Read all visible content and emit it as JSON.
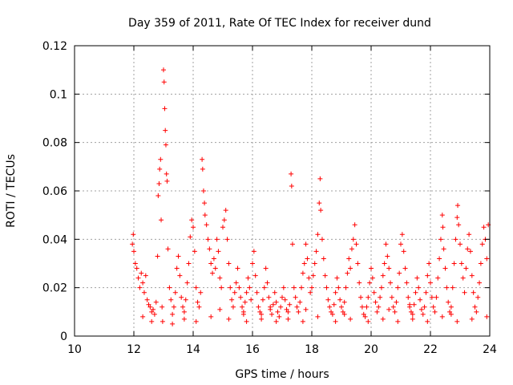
{
  "chart_data": {
    "type": "scatter",
    "title": "Day 359 of 2011, Rate Of TEC Index for receiver dund",
    "xlabel": "GPS time / hours",
    "ylabel": "ROTI / TECUs",
    "xlim": [
      10,
      24
    ],
    "ylim": [
      0,
      0.12
    ],
    "xticks": [
      10,
      12,
      14,
      16,
      18,
      20,
      22,
      24
    ],
    "yticks": [
      0,
      0.02,
      0.04,
      0.06,
      0.08,
      0.1,
      0.12
    ],
    "ytick_labels": [
      "0",
      "0.02",
      "0.04",
      "0.06",
      "0.08",
      "0.1",
      "0.12"
    ],
    "xtick_labels": [
      "10",
      "12",
      "14",
      "16",
      "18",
      "20",
      "22",
      "24"
    ],
    "grid": true,
    "legend": "none",
    "marker": "plus",
    "color": "#ff0000",
    "points": [
      [
        11.95,
        0.038
      ],
      [
        11.98,
        0.042
      ],
      [
        12.0,
        0.035
      ],
      [
        12.05,
        0.03
      ],
      [
        12.1,
        0.028
      ],
      [
        12.15,
        0.024
      ],
      [
        12.2,
        0.02
      ],
      [
        12.25,
        0.026
      ],
      [
        12.3,
        0.022
      ],
      [
        12.35,
        0.018
      ],
      [
        12.4,
        0.025
      ],
      [
        12.45,
        0.015
      ],
      [
        12.5,
        0.013
      ],
      [
        12.55,
        0.012
      ],
      [
        12.6,
        0.01
      ],
      [
        12.65,
        0.011
      ],
      [
        12.7,
        0.009
      ],
      [
        12.75,
        0.014
      ],
      [
        12.8,
        0.033
      ],
      [
        12.82,
        0.058
      ],
      [
        12.85,
        0.063
      ],
      [
        12.87,
        0.069
      ],
      [
        12.9,
        0.073
      ],
      [
        12.92,
        0.048
      ],
      [
        12.95,
        0.012
      ],
      [
        12.97,
        0.006
      ],
      [
        13.0,
        0.11
      ],
      [
        13.02,
        0.105
      ],
      [
        13.04,
        0.094
      ],
      [
        13.06,
        0.085
      ],
      [
        13.08,
        0.079
      ],
      [
        13.1,
        0.067
      ],
      [
        13.12,
        0.064
      ],
      [
        13.15,
        0.036
      ],
      [
        13.2,
        0.02
      ],
      [
        13.25,
        0.015
      ],
      [
        13.3,
        0.009
      ],
      [
        13.35,
        0.012
      ],
      [
        13.4,
        0.018
      ],
      [
        13.45,
        0.028
      ],
      [
        13.5,
        0.033
      ],
      [
        13.55,
        0.025
      ],
      [
        13.6,
        0.016
      ],
      [
        13.65,
        0.012
      ],
      [
        13.7,
        0.01
      ],
      [
        13.75,
        0.015
      ],
      [
        13.8,
        0.022
      ],
      [
        13.85,
        0.03
      ],
      [
        13.9,
        0.041
      ],
      [
        13.95,
        0.048
      ],
      [
        14.0,
        0.045
      ],
      [
        14.05,
        0.035
      ],
      [
        14.1,
        0.02
      ],
      [
        14.15,
        0.014
      ],
      [
        14.2,
        0.012
      ],
      [
        14.25,
        0.018
      ],
      [
        14.3,
        0.073
      ],
      [
        14.32,
        0.069
      ],
      [
        14.35,
        0.06
      ],
      [
        14.38,
        0.055
      ],
      [
        14.4,
        0.05
      ],
      [
        14.45,
        0.046
      ],
      [
        14.5,
        0.04
      ],
      [
        14.55,
        0.036
      ],
      [
        14.6,
        0.03
      ],
      [
        14.65,
        0.026
      ],
      [
        14.7,
        0.032
      ],
      [
        14.75,
        0.028
      ],
      [
        14.8,
        0.04
      ],
      [
        14.85,
        0.035
      ],
      [
        14.9,
        0.024
      ],
      [
        14.95,
        0.02
      ],
      [
        15.0,
        0.045
      ],
      [
        15.05,
        0.048
      ],
      [
        15.1,
        0.052
      ],
      [
        15.15,
        0.04
      ],
      [
        15.2,
        0.03
      ],
      [
        15.25,
        0.02
      ],
      [
        15.3,
        0.015
      ],
      [
        15.35,
        0.012
      ],
      [
        15.4,
        0.018
      ],
      [
        15.45,
        0.022
      ],
      [
        15.5,
        0.028
      ],
      [
        15.55,
        0.02
      ],
      [
        15.6,
        0.016
      ],
      [
        15.65,
        0.012
      ],
      [
        15.7,
        0.01
      ],
      [
        15.75,
        0.014
      ],
      [
        15.8,
        0.018
      ],
      [
        15.85,
        0.024
      ],
      [
        15.9,
        0.02
      ],
      [
        15.95,
        0.015
      ],
      [
        16.0,
        0.03
      ],
      [
        16.05,
        0.035
      ],
      [
        16.1,
        0.025
      ],
      [
        16.15,
        0.018
      ],
      [
        16.2,
        0.012
      ],
      [
        16.25,
        0.01
      ],
      [
        16.3,
        0.009
      ],
      [
        16.35,
        0.015
      ],
      [
        16.4,
        0.02
      ],
      [
        16.45,
        0.028
      ],
      [
        16.5,
        0.022
      ],
      [
        16.55,
        0.016
      ],
      [
        16.6,
        0.011
      ],
      [
        16.65,
        0.009
      ],
      [
        16.7,
        0.013
      ],
      [
        16.75,
        0.018
      ],
      [
        16.8,
        0.014
      ],
      [
        16.85,
        0.01
      ],
      [
        16.9,
        0.008
      ],
      [
        16.95,
        0.012
      ],
      [
        17.0,
        0.016
      ],
      [
        17.05,
        0.02
      ],
      [
        17.1,
        0.015
      ],
      [
        17.15,
        0.011
      ],
      [
        17.2,
        0.01
      ],
      [
        17.25,
        0.013
      ],
      [
        17.3,
        0.067
      ],
      [
        17.32,
        0.062
      ],
      [
        17.35,
        0.038
      ],
      [
        17.4,
        0.02
      ],
      [
        17.45,
        0.016
      ],
      [
        17.5,
        0.012
      ],
      [
        17.55,
        0.01
      ],
      [
        17.6,
        0.014
      ],
      [
        17.65,
        0.02
      ],
      [
        17.7,
        0.026
      ],
      [
        17.75,
        0.03
      ],
      [
        17.8,
        0.038
      ],
      [
        17.85,
        0.032
      ],
      [
        17.9,
        0.024
      ],
      [
        17.95,
        0.018
      ],
      [
        18.0,
        0.02
      ],
      [
        18.05,
        0.025
      ],
      [
        18.1,
        0.03
      ],
      [
        18.15,
        0.035
      ],
      [
        18.2,
        0.042
      ],
      [
        18.25,
        0.055
      ],
      [
        18.28,
        0.065
      ],
      [
        18.3,
        0.052
      ],
      [
        18.35,
        0.04
      ],
      [
        18.4,
        0.032
      ],
      [
        18.45,
        0.025
      ],
      [
        18.5,
        0.02
      ],
      [
        18.55,
        0.015
      ],
      [
        18.6,
        0.012
      ],
      [
        18.65,
        0.01
      ],
      [
        18.7,
        0.009
      ],
      [
        18.75,
        0.013
      ],
      [
        18.8,
        0.018
      ],
      [
        18.85,
        0.024
      ],
      [
        18.9,
        0.02
      ],
      [
        18.95,
        0.015
      ],
      [
        19.0,
        0.012
      ],
      [
        19.05,
        0.01
      ],
      [
        19.1,
        0.014
      ],
      [
        19.15,
        0.02
      ],
      [
        19.2,
        0.026
      ],
      [
        19.25,
        0.032
      ],
      [
        19.3,
        0.028
      ],
      [
        19.35,
        0.036
      ],
      [
        19.4,
        0.04
      ],
      [
        19.45,
        0.046
      ],
      [
        19.5,
        0.038
      ],
      [
        19.55,
        0.03
      ],
      [
        19.6,
        0.022
      ],
      [
        19.65,
        0.016
      ],
      [
        19.7,
        0.012
      ],
      [
        19.75,
        0.009
      ],
      [
        19.8,
        0.008
      ],
      [
        19.85,
        0.012
      ],
      [
        19.9,
        0.016
      ],
      [
        19.95,
        0.022
      ],
      [
        20.0,
        0.028
      ],
      [
        20.05,
        0.024
      ],
      [
        20.1,
        0.018
      ],
      [
        20.15,
        0.014
      ],
      [
        20.2,
        0.01
      ],
      [
        20.25,
        0.012
      ],
      [
        20.3,
        0.016
      ],
      [
        20.35,
        0.02
      ],
      [
        20.4,
        0.025
      ],
      [
        20.45,
        0.03
      ],
      [
        20.5,
        0.038
      ],
      [
        20.55,
        0.033
      ],
      [
        20.6,
        0.028
      ],
      [
        20.65,
        0.022
      ],
      [
        20.7,
        0.016
      ],
      [
        20.75,
        0.012
      ],
      [
        20.8,
        0.01
      ],
      [
        20.85,
        0.014
      ],
      [
        20.9,
        0.02
      ],
      [
        20.95,
        0.026
      ],
      [
        21.0,
        0.038
      ],
      [
        21.05,
        0.042
      ],
      [
        21.1,
        0.035
      ],
      [
        21.15,
        0.028
      ],
      [
        21.2,
        0.022
      ],
      [
        21.25,
        0.016
      ],
      [
        21.3,
        0.012
      ],
      [
        21.35,
        0.01
      ],
      [
        21.4,
        0.009
      ],
      [
        21.45,
        0.013
      ],
      [
        21.5,
        0.018
      ],
      [
        21.55,
        0.024
      ],
      [
        21.6,
        0.02
      ],
      [
        21.65,
        0.015
      ],
      [
        21.7,
        0.011
      ],
      [
        21.75,
        0.009
      ],
      [
        21.8,
        0.012
      ],
      [
        21.85,
        0.018
      ],
      [
        21.9,
        0.025
      ],
      [
        21.95,
        0.03
      ],
      [
        22.0,
        0.022
      ],
      [
        22.05,
        0.016
      ],
      [
        22.1,
        0.012
      ],
      [
        22.15,
        0.01
      ],
      [
        22.2,
        0.016
      ],
      [
        22.25,
        0.024
      ],
      [
        22.3,
        0.032
      ],
      [
        22.35,
        0.04
      ],
      [
        22.4,
        0.05
      ],
      [
        22.42,
        0.045
      ],
      [
        22.45,
        0.036
      ],
      [
        22.5,
        0.028
      ],
      [
        22.55,
        0.02
      ],
      [
        22.6,
        0.014
      ],
      [
        22.65,
        0.01
      ],
      [
        22.7,
        0.012
      ],
      [
        22.75,
        0.02
      ],
      [
        22.8,
        0.03
      ],
      [
        22.85,
        0.04
      ],
      [
        22.9,
        0.049
      ],
      [
        22.92,
        0.054
      ],
      [
        22.95,
        0.046
      ],
      [
        23.0,
        0.038
      ],
      [
        23.05,
        0.03
      ],
      [
        23.1,
        0.024
      ],
      [
        23.15,
        0.018
      ],
      [
        23.2,
        0.028
      ],
      [
        23.25,
        0.036
      ],
      [
        23.3,
        0.042
      ],
      [
        23.35,
        0.035
      ],
      [
        23.4,
        0.025
      ],
      [
        23.45,
        0.018
      ],
      [
        23.5,
        0.012
      ],
      [
        23.55,
        0.01
      ],
      [
        23.6,
        0.016
      ],
      [
        23.65,
        0.022
      ],
      [
        23.7,
        0.03
      ],
      [
        23.75,
        0.038
      ],
      [
        23.8,
        0.045
      ],
      [
        23.85,
        0.04
      ],
      [
        23.9,
        0.032
      ],
      [
        23.95,
        0.046
      ],
      [
        12.3,
        0.008
      ],
      [
        12.6,
        0.006
      ],
      [
        13.3,
        0.005
      ],
      [
        13.7,
        0.007
      ],
      [
        14.1,
        0.006
      ],
      [
        14.6,
        0.008
      ],
      [
        15.2,
        0.007
      ],
      [
        15.8,
        0.006
      ],
      [
        16.3,
        0.007
      ],
      [
        16.8,
        0.006
      ],
      [
        17.2,
        0.007
      ],
      [
        17.7,
        0.006
      ],
      [
        18.2,
        0.008
      ],
      [
        18.8,
        0.006
      ],
      [
        19.3,
        0.007
      ],
      [
        19.9,
        0.006
      ],
      [
        20.4,
        0.007
      ],
      [
        20.9,
        0.006
      ],
      [
        21.4,
        0.007
      ],
      [
        21.9,
        0.006
      ],
      [
        22.4,
        0.008
      ],
      [
        22.9,
        0.006
      ],
      [
        23.4,
        0.007
      ],
      [
        23.9,
        0.008
      ],
      [
        14.9,
        0.011
      ],
      [
        15.7,
        0.009
      ],
      [
        16.6,
        0.012
      ],
      [
        17.8,
        0.011
      ],
      [
        19.1,
        0.009
      ],
      [
        20.6,
        0.011
      ],
      [
        21.3,
        0.013
      ],
      [
        22.7,
        0.009
      ]
    ]
  }
}
